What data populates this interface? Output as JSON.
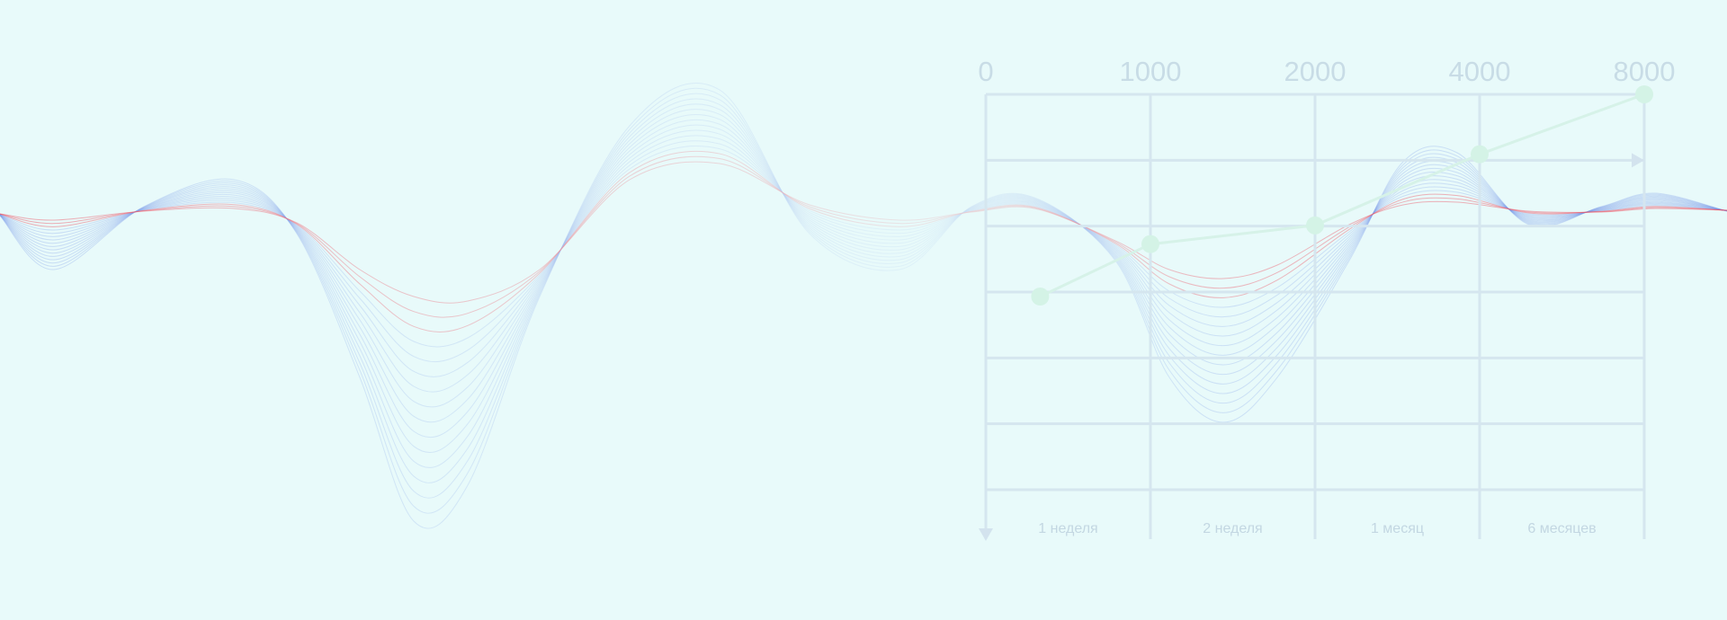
{
  "colors": {
    "background": "#e8fafa",
    "grid": "#d5e6ef",
    "tick_text": "#c8dce6",
    "series": "#d4f3e6",
    "wave_blue": "#6f8fe6",
    "wave_red": "#ee4a5a"
  },
  "chart_data": {
    "type": "line",
    "title": "",
    "xlabel": "",
    "ylabel": "",
    "top_ticks": [
      "0",
      "1000",
      "2000",
      "4000",
      "8000"
    ],
    "categories": [
      "1 неделя",
      "2 неделя",
      "1 месяц",
      "6 месяцев"
    ],
    "series": [
      {
        "name": "",
        "x": [
          0.33,
          1.0,
          2.0,
          3.0,
          4.0
        ],
        "values": [
          1.3,
          2.0,
          2.25,
          3.2,
          4.0
        ]
      }
    ],
    "x_range": [
      0,
      4
    ],
    "y_range": [
      0,
      4
    ],
    "grid": true,
    "legend": "none",
    "decoration": "wave-lines"
  }
}
